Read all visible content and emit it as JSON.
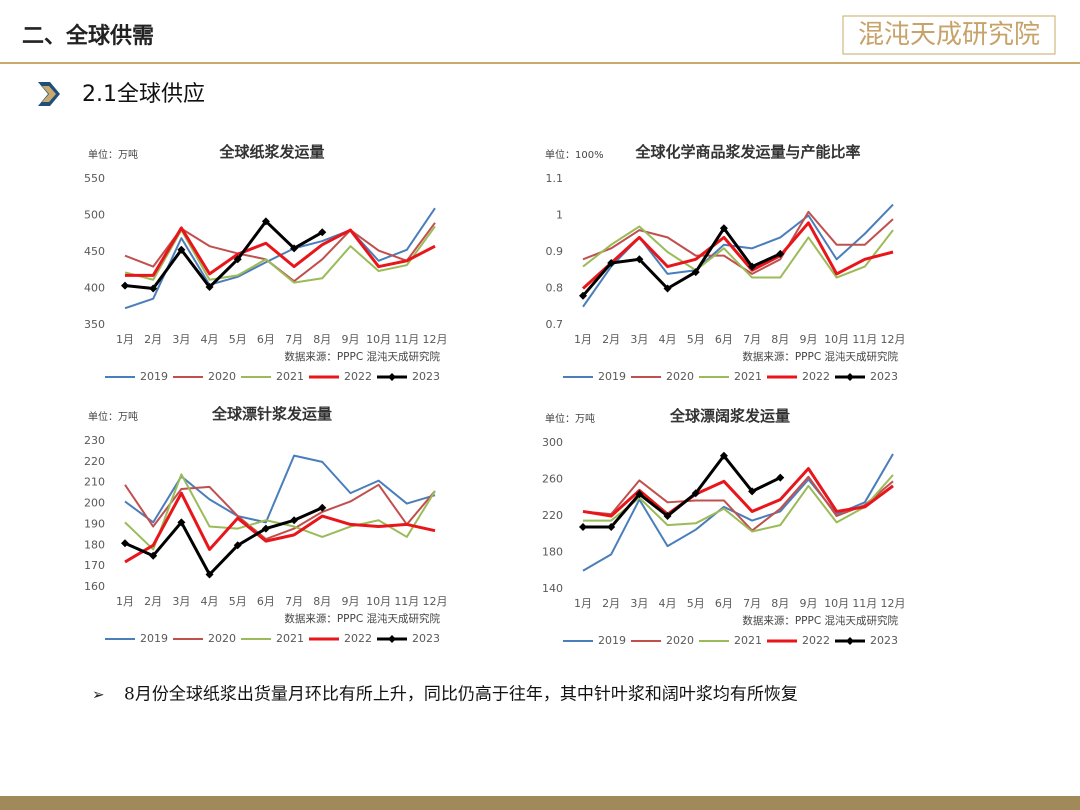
{
  "header": {
    "title": "二、全球供需",
    "logo": "混沌天成研究院",
    "section": "2.1全球供应"
  },
  "bullet": "8月份全球纸浆出货量月环比有所上升，同比仍高于往年，其中针叶浆和阔叶浆均有所恢复",
  "chart_data": [
    {
      "type": "line",
      "title": "全球纸浆发运量",
      "unit": "单位：万吨",
      "source": "数据来源：PPPC 混沌天成研究院",
      "categories": [
        "1月",
        "2月",
        "3月",
        "4月",
        "5月",
        "6月",
        "7月",
        "8月",
        "9月",
        "10月",
        "11月",
        "12月"
      ],
      "ylim": [
        350,
        550
      ],
      "yticks": [
        350,
        400,
        450,
        500,
        550
      ],
      "series": [
        {
          "name": "2019",
          "color": "#4a7ebb",
          "values": [
            373,
            386,
            469,
            405,
            416,
            436,
            455,
            465,
            480,
            438,
            453,
            510
          ]
        },
        {
          "name": "2020",
          "color": "#c0504d",
          "values": [
            445,
            430,
            482,
            458,
            448,
            440,
            410,
            440,
            480,
            452,
            438,
            490
          ]
        },
        {
          "name": "2021",
          "color": "#9bbb59",
          "values": [
            422,
            412,
            480,
            412,
            418,
            440,
            408,
            414,
            458,
            424,
            432,
            485
          ]
        },
        {
          "name": "2022",
          "color": "#e8161b",
          "values": [
            418,
            418,
            483,
            420,
            447,
            462,
            430,
            460,
            480,
            430,
            438,
            458
          ]
        },
        {
          "name": "2023",
          "color": "#000000",
          "marker": "diamond",
          "values": [
            404,
            400,
            453,
            402,
            440,
            492,
            455,
            477,
            null,
            null,
            null,
            null
          ]
        }
      ]
    },
    {
      "type": "line",
      "title": "全球化学商品浆发运量与产能比率",
      "unit": "单位：100%",
      "source": "数据来源：PPPC 混沌天成研究院",
      "categories": [
        "1月",
        "2月",
        "3月",
        "4月",
        "5月",
        "6月",
        "7月",
        "8月",
        "9月",
        "10月",
        "11月",
        "12月"
      ],
      "ylim": [
        0.7,
        1.1
      ],
      "yticks": [
        0.7,
        0.8,
        0.9,
        1,
        1.1
      ],
      "series": [
        {
          "name": "2019",
          "color": "#4a7ebb",
          "values": [
            0.75,
            0.86,
            0.94,
            0.84,
            0.85,
            0.92,
            0.91,
            0.94,
            1.0,
            0.88,
            0.95,
            1.03
          ]
        },
        {
          "name": "2020",
          "color": "#c0504d",
          "values": [
            0.88,
            0.91,
            0.96,
            0.94,
            0.89,
            0.89,
            0.84,
            0.88,
            1.01,
            0.92,
            0.92,
            0.99
          ]
        },
        {
          "name": "2021",
          "color": "#9bbb59",
          "values": [
            0.86,
            0.92,
            0.97,
            0.9,
            0.85,
            0.91,
            0.83,
            0.83,
            0.94,
            0.83,
            0.86,
            0.96
          ]
        },
        {
          "name": "2022",
          "color": "#e8161b",
          "values": [
            0.8,
            0.87,
            0.94,
            0.86,
            0.88,
            0.94,
            0.85,
            0.89,
            0.98,
            0.84,
            0.88,
            0.9
          ]
        },
        {
          "name": "2023",
          "color": "#000000",
          "marker": "diamond",
          "values": [
            0.78,
            0.87,
            0.88,
            0.8,
            0.845,
            0.965,
            0.86,
            0.895,
            null,
            null,
            null,
            null
          ]
        }
      ]
    },
    {
      "type": "line",
      "title": "全球漂针浆发运量",
      "unit": "单位：万吨",
      "source": "数据来源：PPPC 混沌天成研究院",
      "categories": [
        "1月",
        "2月",
        "3月",
        "4月",
        "5月",
        "6月",
        "7月",
        "8月",
        "9月",
        "10月",
        "11月",
        "12月"
      ],
      "ylim": [
        160,
        230
      ],
      "yticks": [
        160,
        170,
        180,
        190,
        200,
        210,
        220,
        230
      ],
      "series": [
        {
          "name": "2019",
          "color": "#4a7ebb",
          "values": [
            201,
            191,
            213,
            202,
            194,
            191,
            223,
            220,
            205,
            211,
            200,
            204
          ]
        },
        {
          "name": "2020",
          "color": "#c0504d",
          "values": [
            209,
            189,
            207,
            208,
            194,
            183,
            188,
            196,
            201,
            209,
            190,
            206
          ]
        },
        {
          "name": "2021",
          "color": "#9bbb59",
          "values": [
            191,
            178,
            214,
            189,
            188,
            192,
            189,
            184,
            189,
            192,
            184,
            206
          ]
        },
        {
          "name": "2022",
          "color": "#e8161b",
          "values": [
            172,
            180,
            205,
            178,
            193,
            182,
            185,
            194,
            190,
            189,
            190,
            187
          ]
        },
        {
          "name": "2023",
          "color": "#000000",
          "marker": "diamond",
          "values": [
            181,
            175,
            191,
            166,
            180,
            188,
            192,
            198,
            null,
            null,
            null,
            null
          ]
        }
      ]
    },
    {
      "type": "line",
      "title": "全球漂阔浆发运量",
      "unit": "单位：万吨",
      "source": "数据来源：PPPC 混沌天成研究院",
      "categories": [
        "1月",
        "2月",
        "3月",
        "4月",
        "5月",
        "6月",
        "7月",
        "8月",
        "9月",
        "10月",
        "11月",
        "12月"
      ],
      "ylim": [
        140,
        300
      ],
      "yticks": [
        140,
        180,
        220,
        260,
        300
      ],
      "series": [
        {
          "name": "2019",
          "color": "#4a7ebb",
          "values": [
            160,
            178,
            238,
            187,
            205,
            230,
            215,
            225,
            260,
            222,
            235,
            288
          ]
        },
        {
          "name": "2020",
          "color": "#c0504d",
          "values": [
            225,
            222,
            259,
            235,
            237,
            237,
            204,
            228,
            263,
            220,
            232,
            258
          ]
        },
        {
          "name": "2021",
          "color": "#9bbb59",
          "values": [
            215,
            215,
            240,
            210,
            212,
            228,
            203,
            210,
            253,
            213,
            230,
            265
          ]
        },
        {
          "name": "2022",
          "color": "#e8161b",
          "values": [
            225,
            220,
            248,
            222,
            244,
            258,
            225,
            238,
            272,
            225,
            230,
            253
          ]
        },
        {
          "name": "2023",
          "color": "#000000",
          "marker": "diamond",
          "values": [
            208,
            208,
            244,
            220,
            245,
            286,
            247,
            262,
            null,
            null,
            null,
            null
          ]
        }
      ]
    }
  ]
}
